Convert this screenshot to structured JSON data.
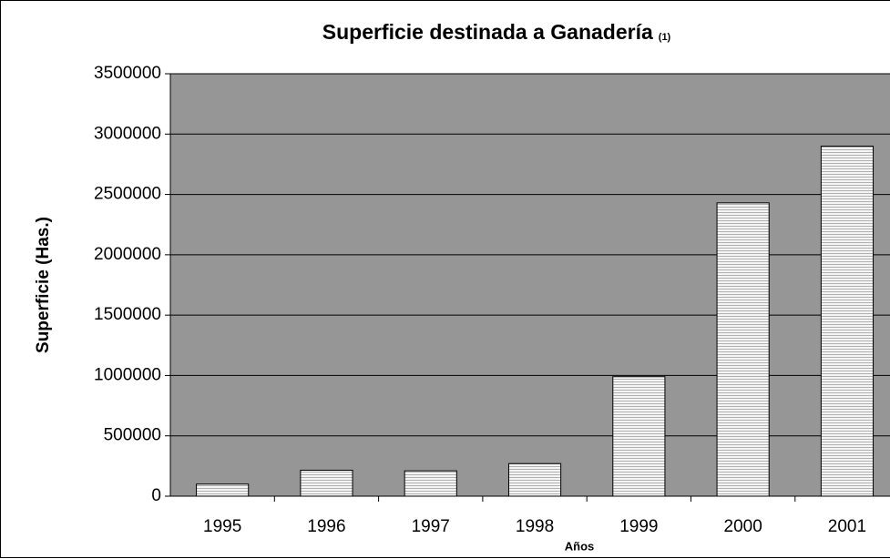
{
  "chart_data": {
    "type": "bar",
    "title": "Superficie destinada a Ganadería",
    "title_note": "(1)",
    "x_label": "Años",
    "y_label": "Superficie (Has.)",
    "categories": [
      "1995",
      "1996",
      "1997",
      "1998",
      "1999",
      "2000",
      "2001"
    ],
    "values": [
      100000,
      215000,
      210000,
      270000,
      990000,
      2430000,
      2900000
    ],
    "color": "#e8e8e8",
    "background": "#969696",
    "ylim": [
      0,
      3500000
    ],
    "yticks": [
      0,
      500000,
      1000000,
      1500000,
      2000000,
      2500000,
      3000000,
      3500000
    ],
    "grid": true
  }
}
